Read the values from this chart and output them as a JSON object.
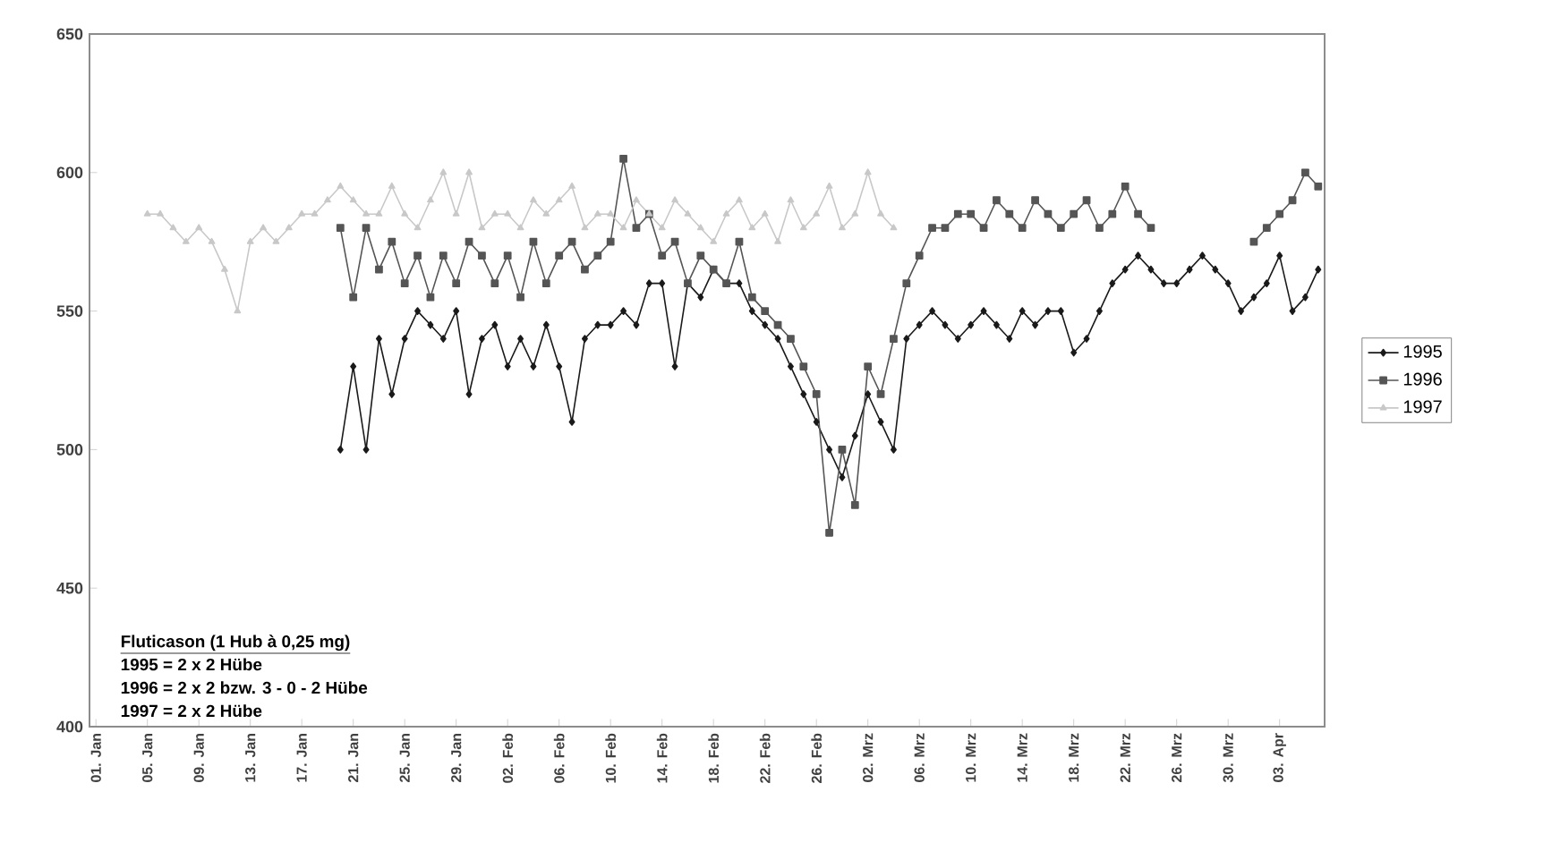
{
  "chart_data": {
    "type": "line",
    "categories": [
      "01. Jan",
      null,
      null,
      null,
      "05. Jan",
      null,
      null,
      null,
      "09. Jan",
      null,
      null,
      null,
      "13. Jan",
      null,
      null,
      null,
      "17. Jan",
      null,
      null,
      null,
      "21. Jan",
      null,
      null,
      null,
      "25. Jan",
      null,
      null,
      null,
      "29. Jan",
      null,
      null,
      null,
      "02. Feb",
      null,
      null,
      null,
      "06. Feb",
      null,
      null,
      null,
      "10. Feb",
      null,
      null,
      null,
      "14. Feb",
      null,
      null,
      null,
      "18. Feb",
      null,
      null,
      null,
      "22. Feb",
      null,
      null,
      null,
      "26. Feb",
      null,
      null,
      null,
      "02. Mrz",
      null,
      null,
      null,
      "06. Mrz",
      null,
      null,
      null,
      "10. Mrz",
      null,
      null,
      null,
      "14. Mrz",
      null,
      null,
      null,
      "18. Mrz",
      null,
      null,
      null,
      "22. Mrz",
      null,
      null,
      null,
      "26. Mrz",
      null,
      null,
      null,
      "30. Mrz",
      null,
      null,
      null,
      "03. Apr",
      null,
      null,
      null
    ],
    "series": [
      {
        "name": "1995",
        "color": "#1a1a1a",
        "marker": "diamond",
        "values": [
          null,
          null,
          null,
          null,
          null,
          null,
          null,
          null,
          null,
          null,
          null,
          null,
          null,
          null,
          null,
          null,
          null,
          null,
          null,
          500,
          530,
          500,
          540,
          520,
          540,
          550,
          545,
          540,
          550,
          520,
          540,
          545,
          530,
          540,
          530,
          545,
          530,
          510,
          540,
          545,
          545,
          550,
          545,
          560,
          560,
          530,
          560,
          555,
          565,
          560,
          560,
          550,
          545,
          540,
          530,
          520,
          510,
          500,
          490,
          505,
          520,
          510,
          500,
          540,
          545,
          550,
          545,
          540,
          545,
          550,
          545,
          540,
          550,
          545,
          550,
          550,
          535,
          540,
          550,
          560,
          565,
          570,
          565,
          560,
          560,
          565,
          570,
          565,
          560,
          550,
          555,
          560,
          570,
          550,
          555,
          565
        ]
      },
      {
        "name": "1996",
        "color": "#555555",
        "marker": "square",
        "values": [
          null,
          null,
          null,
          null,
          null,
          null,
          null,
          null,
          null,
          null,
          null,
          null,
          null,
          null,
          null,
          null,
          null,
          null,
          null,
          580,
          555,
          580,
          565,
          575,
          560,
          570,
          555,
          570,
          560,
          575,
          570,
          560,
          570,
          555,
          575,
          560,
          570,
          575,
          565,
          570,
          575,
          605,
          580,
          585,
          570,
          575,
          560,
          570,
          565,
          560,
          575,
          555,
          550,
          545,
          540,
          530,
          520,
          470,
          500,
          480,
          530,
          520,
          540,
          560,
          570,
          580,
          580,
          585,
          585,
          580,
          590,
          585,
          580,
          590,
          585,
          580,
          585,
          590,
          580,
          585,
          595,
          585,
          580,
          null,
          null,
          null,
          null,
          null,
          null,
          null,
          575,
          580,
          585,
          590,
          600,
          595
        ]
      },
      {
        "name": "1997",
        "color": "#c8c8c8",
        "marker": "triangle",
        "values": [
          null,
          null,
          null,
          null,
          585,
          585,
          580,
          575,
          580,
          575,
          565,
          550,
          575,
          580,
          575,
          580,
          585,
          585,
          590,
          595,
          590,
          585,
          585,
          595,
          585,
          580,
          590,
          600,
          585,
          600,
          580,
          585,
          585,
          580,
          590,
          585,
          590,
          595,
          580,
          585,
          585,
          580,
          590,
          585,
          580,
          590,
          585,
          580,
          575,
          585,
          590,
          580,
          585,
          575,
          590,
          580,
          585,
          595,
          580,
          585,
          600,
          585,
          580,
          null,
          null,
          null,
          null,
          null,
          null,
          null,
          null,
          null,
          null,
          null,
          null,
          null,
          null,
          null,
          null,
          null,
          null,
          null,
          null,
          null,
          null,
          null,
          null,
          null,
          null,
          null,
          null,
          null,
          null,
          null,
          null,
          null
        ]
      }
    ],
    "ylim": [
      400,
      650
    ],
    "yticks": [
      400,
      450,
      500,
      550,
      600,
      650
    ],
    "legend": "right",
    "grid": false,
    "line_style": "solid",
    "annotations": [
      "Fluticason (1 Hub à 0,25 mg)",
      "1995 = 2 x 2 Hübe",
      "1996 = 2 x 2 bzw. 3 - 0 - 2 Hübe",
      "1997 = 2 x 2 Hübe"
    ]
  }
}
